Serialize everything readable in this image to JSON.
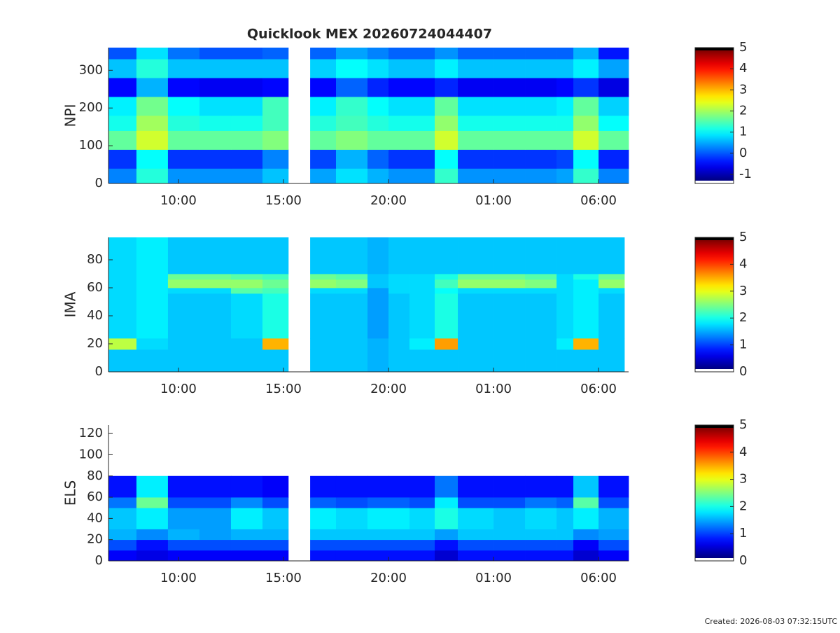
{
  "chart_data": [
    {
      "type": "heatmap",
      "title": "Quicklook MEX 20260724044407",
      "ylabel": "NPI",
      "xlim": [
        6.67,
        31.43
      ],
      "xticks": [
        {
          "value": 10,
          "label": "10:00"
        },
        {
          "value": 15,
          "label": "15:00"
        },
        {
          "value": 20,
          "label": "20:00"
        },
        {
          "value": 25,
          "label": "01:00"
        },
        {
          "value": 30,
          "label": "06:00"
        }
      ],
      "ylim": [
        0,
        360
      ],
      "yticks": [
        0,
        100,
        200,
        300
      ],
      "x_edges": [
        6.67,
        8,
        9.5,
        11,
        12.5,
        14,
        15.23,
        16.27,
        17.5,
        19,
        20,
        21,
        22.2,
        23.3,
        25,
        26.5,
        28,
        28.8,
        30,
        31.43
      ],
      "y_edges": [
        0,
        40,
        90,
        140,
        180,
        230,
        280,
        330,
        360
      ],
      "z": [
        [
          0.2,
          1.2,
          0.3,
          0.3,
          0.3,
          0.6,
          null,
          0.4,
          0.8,
          0.5,
          0.3,
          0.3,
          1.3,
          0.3,
          0.3,
          0.3,
          0.4,
          1.3,
          0.2
        ],
        [
          -0.3,
          1.0,
          -0.3,
          -0.3,
          -0.3,
          0.2,
          null,
          -0.2,
          0.5,
          0.0,
          -0.3,
          -0.3,
          1.0,
          -0.3,
          -0.3,
          -0.3,
          -0.2,
          1.0,
          -0.4
        ],
        [
          1.6,
          2.3,
          1.6,
          1.6,
          1.6,
          1.8,
          null,
          1.6,
          1.8,
          1.6,
          1.6,
          1.6,
          2.3,
          1.6,
          1.6,
          1.6,
          1.6,
          2.3,
          1.6
        ],
        [
          1.1,
          2.0,
          1.2,
          1.1,
          1.1,
          1.4,
          null,
          1.2,
          1.4,
          1.2,
          1.1,
          1.1,
          1.9,
          1.1,
          1.1,
          1.1,
          1.1,
          1.9,
          1.0
        ],
        [
          0.9,
          1.7,
          1.0,
          0.8,
          0.8,
          1.4,
          null,
          0.9,
          1.3,
          1.0,
          0.8,
          0.8,
          1.6,
          0.8,
          0.8,
          0.8,
          0.9,
          1.6,
          0.7
        ],
        [
          -0.6,
          0.5,
          -0.6,
          -0.7,
          -0.7,
          -0.6,
          null,
          -0.6,
          0.0,
          -0.4,
          -0.6,
          -0.6,
          -0.4,
          -0.7,
          -0.7,
          -0.7,
          -0.6,
          -0.3,
          -0.8
        ],
        [
          0.6,
          1.2,
          0.6,
          0.6,
          0.6,
          0.6,
          null,
          0.7,
          1.0,
          0.8,
          0.6,
          0.6,
          0.9,
          0.6,
          0.6,
          0.6,
          0.6,
          0.9,
          0.4
        ],
        [
          -0.1,
          0.8,
          0.1,
          -0.1,
          -0.1,
          0.0,
          null,
          0.0,
          0.4,
          0.2,
          0.0,
          0.0,
          0.3,
          0.0,
          0.0,
          0.0,
          0.0,
          0.5,
          -0.5
        ]
      ],
      "clim": [
        -1.43,
        5
      ],
      "cticks": [
        -1,
        0,
        1,
        2,
        3,
        4,
        5
      ]
    },
    {
      "type": "heatmap",
      "ylabel": "IMA",
      "xlim": [
        6.67,
        31.43
      ],
      "xticks": [
        {
          "value": 10,
          "label": "10:00"
        },
        {
          "value": 15,
          "label": "15:00"
        },
        {
          "value": 20,
          "label": "20:00"
        },
        {
          "value": 25,
          "label": "01:00"
        },
        {
          "value": 30,
          "label": "06:00"
        }
      ],
      "ylim": [
        0,
        96
      ],
      "yticks": [
        0,
        20,
        40,
        60,
        80
      ],
      "x_edges": [
        6.67,
        8,
        9.5,
        11,
        12.5,
        14,
        15.23,
        16.27,
        17.5,
        19,
        20,
        21,
        22.2,
        23.3,
        25,
        26.5,
        28,
        28.8,
        30,
        31.23
      ],
      "y_edges": [
        0,
        16,
        24,
        56,
        60,
        66,
        70,
        96
      ],
      "z": [
        [
          1.6,
          1.6,
          1.6,
          1.6,
          1.6,
          1.6,
          null,
          1.6,
          1.6,
          1.5,
          1.6,
          1.6,
          1.6,
          1.6,
          1.6,
          1.6,
          1.6,
          1.6,
          1.6
        ],
        [
          2.8,
          1.7,
          1.6,
          1.6,
          1.6,
          3.5,
          null,
          1.6,
          1.6,
          1.5,
          1.6,
          1.8,
          3.6,
          1.6,
          1.6,
          1.6,
          1.8,
          3.5,
          1.6
        ],
        [
          1.7,
          1.8,
          1.6,
          1.6,
          1.7,
          2.0,
          null,
          1.6,
          1.6,
          1.4,
          1.6,
          1.7,
          2.0,
          1.6,
          1.6,
          1.6,
          1.7,
          1.8,
          1.6
        ],
        [
          1.7,
          1.8,
          1.7,
          1.7,
          2.3,
          2.2,
          null,
          1.7,
          1.7,
          1.4,
          1.7,
          1.7,
          1.9,
          1.7,
          1.7,
          1.7,
          1.7,
          1.8,
          1.7
        ],
        [
          1.7,
          1.8,
          2.6,
          2.6,
          2.6,
          2.4,
          null,
          2.6,
          2.5,
          1.6,
          1.7,
          1.7,
          2.2,
          2.6,
          2.6,
          2.5,
          1.7,
          1.8,
          2.6
        ],
        [
          1.7,
          1.8,
          2.4,
          2.4,
          2.3,
          2.2,
          null,
          2.4,
          2.3,
          1.6,
          1.7,
          1.7,
          2.0,
          2.4,
          2.4,
          2.3,
          1.7,
          2.0,
          2.4
        ],
        [
          1.7,
          1.8,
          1.6,
          1.6,
          1.6,
          1.6,
          null,
          1.6,
          1.6,
          1.5,
          1.6,
          1.6,
          1.6,
          1.6,
          1.6,
          1.6,
          1.6,
          1.6,
          1.6
        ]
      ],
      "clim": [
        0,
        5
      ],
      "cticks": [
        0,
        1,
        2,
        3,
        4,
        5
      ]
    },
    {
      "type": "heatmap",
      "ylabel": "ELS",
      "xlim": [
        6.67,
        31.43
      ],
      "xticks": [
        {
          "value": 10,
          "label": "10:00"
        },
        {
          "value": 15,
          "label": "15:00"
        },
        {
          "value": 20,
          "label": "20:00"
        },
        {
          "value": 25,
          "label": "01:00"
        },
        {
          "value": 30,
          "label": "06:00"
        }
      ],
      "ylim": [
        0,
        128
      ],
      "yticks": [
        0,
        20,
        40,
        60,
        80,
        100,
        120
      ],
      "x_edges": [
        6.67,
        8,
        9.5,
        11,
        12.5,
        14,
        15.23,
        16.27,
        17.5,
        19,
        20,
        21,
        22.2,
        23.3,
        25,
        26.5,
        28,
        28.8,
        30,
        31.43
      ],
      "y_edges": [
        0,
        10,
        20,
        30,
        50,
        60,
        80,
        128
      ],
      "z": [
        [
          0.6,
          0.5,
          0.6,
          0.6,
          0.6,
          0.6,
          null,
          0.7,
          0.7,
          0.7,
          0.7,
          0.7,
          0.4,
          0.7,
          0.7,
          0.7,
          0.7,
          0.4,
          0.6
        ],
        [
          1.0,
          0.7,
          1.0,
          1.0,
          1.0,
          1.0,
          null,
          1.0,
          1.0,
          1.0,
          1.0,
          1.0,
          0.7,
          1.0,
          1.0,
          1.0,
          1.0,
          0.6,
          1.0
        ],
        [
          1.5,
          1.3,
          1.5,
          1.4,
          1.5,
          1.5,
          null,
          1.6,
          1.6,
          1.6,
          1.6,
          1.6,
          1.4,
          1.6,
          1.6,
          1.6,
          1.6,
          1.3,
          1.4
        ],
        [
          1.6,
          1.8,
          1.4,
          1.4,
          1.8,
          1.6,
          null,
          1.8,
          1.7,
          1.8,
          1.8,
          1.7,
          2.0,
          1.7,
          1.6,
          1.7,
          1.6,
          1.8,
          1.5
        ],
        [
          1.2,
          2.4,
          1.0,
          1.0,
          1.3,
          1.0,
          null,
          1.1,
          1.0,
          1.1,
          1.1,
          1.0,
          1.8,
          1.0,
          1.0,
          1.2,
          1.1,
          2.3,
          1.0
        ],
        [
          0.7,
          1.8,
          0.7,
          0.7,
          0.7,
          0.6,
          null,
          0.7,
          0.7,
          0.7,
          0.7,
          0.7,
          1.2,
          0.7,
          0.7,
          0.7,
          0.7,
          1.6,
          0.7
        ],
        [
          null,
          null,
          null,
          null,
          null,
          null,
          null,
          null,
          null,
          null,
          null,
          null,
          null,
          null,
          null,
          null,
          null,
          null,
          null
        ]
      ],
      "clim": [
        0,
        5
      ],
      "cticks": [
        0,
        1,
        2,
        3,
        4,
        5
      ]
    }
  ],
  "footer": "Created: 2026-08-03 07:32:15UTC"
}
